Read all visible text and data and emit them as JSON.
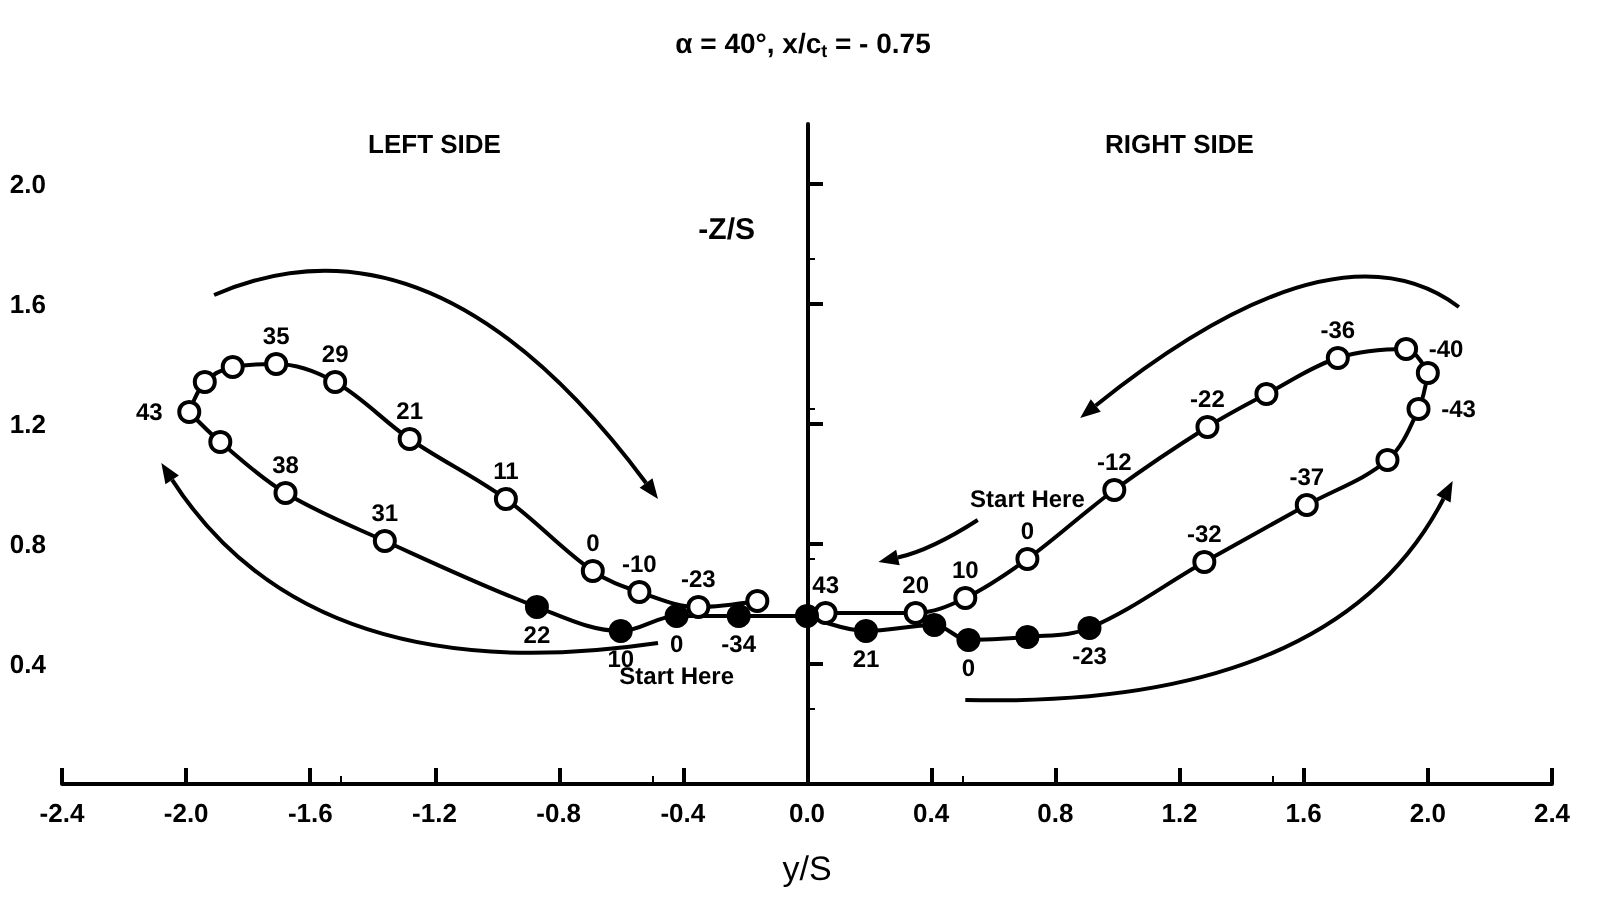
{
  "chart_data": {
    "type": "scatter",
    "title": "α = 40°, x/c$_{t}$ = - 0.75",
    "xlabel": "y/S",
    "ylabel": "-Z/S",
    "xlim": [
      -2.4,
      2.4
    ],
    "ylim": [
      0,
      2.2
    ],
    "xticks": [
      {
        "value": -2.4,
        "label": "-2.4"
      },
      {
        "value": -2.0,
        "label": "-2.0"
      },
      {
        "value": -1.6,
        "label": "-1.6"
      },
      {
        "value": -1.2,
        "label": "-1.2"
      },
      {
        "value": -0.8,
        "label": "-0.8"
      },
      {
        "value": -0.4,
        "label": "-0.4"
      },
      {
        "value": 0,
        "label": "0.0"
      },
      {
        "value": 0.4,
        "label": "0.4"
      },
      {
        "value": 0.8,
        "label": "0.8"
      },
      {
        "value": 1.2,
        "label": "1.2"
      },
      {
        "value": 1.6,
        "label": "1.6"
      },
      {
        "value": 2.0,
        "label": "2.0"
      },
      {
        "value": 2.4,
        "label": "2.4"
      }
    ],
    "yticks": [
      0.4,
      0.8,
      1.2,
      1.6,
      {
        "value": 2.0,
        "label": "2.0"
      }
    ],
    "legend": false,
    "annotations": [
      "LEFT SIDE",
      "RIGHT SIDE",
      {
        "text": "-23",
        "x": -0.35,
        "y": 0.59
      },
      {
        "text": "-10",
        "x": -0.54,
        "y": 0.64
      },
      {
        "text": "0",
        "x": -0.69,
        "y": 0.71
      },
      {
        "text": "11",
        "x": -0.97,
        "y": 0.95
      },
      {
        "text": "21",
        "x": -1.28,
        "y": 1.15
      },
      {
        "text": "29",
        "x": -1.52,
        "y": 1.34
      },
      {
        "text": "35",
        "x": -1.71,
        "y": 1.4
      },
      {
        "text": "43",
        "x": -1.99,
        "y": 1.24
      },
      {
        "text": "38",
        "x": -1.68,
        "y": 0.97
      },
      {
        "text": "31",
        "x": -1.36,
        "y": 0.81
      },
      {
        "text": "22",
        "x": -0.87,
        "y": 0.59
      },
      {
        "text": "10",
        "x": -0.6,
        "y": 0.51
      },
      {
        "text": "0",
        "x": -0.42,
        "y": 0.56
      },
      {
        "text": "-34",
        "x": -0.22,
        "y": 0.56
      },
      {
        "text": "43",
        "x": 0.06,
        "y": 0.57
      },
      {
        "text": "20",
        "x": 0.35,
        "y": 0.57
      },
      {
        "text": "10",
        "x": 0.51,
        "y": 0.62
      },
      {
        "text": "0",
        "x": 0.71,
        "y": 0.75
      },
      {
        "text": "-12",
        "x": 0.99,
        "y": 0.98
      },
      {
        "text": "-22",
        "x": 1.29,
        "y": 1.19
      },
      {
        "text": "-36",
        "x": 1.71,
        "y": 1.42
      },
      {
        "text": "-40",
        "x": 1.93,
        "y": 1.45
      },
      {
        "text": "-43",
        "x": 1.97,
        "y": 1.25
      },
      {
        "text": "-37",
        "x": 1.61,
        "y": 0.93
      },
      {
        "text": "-32",
        "x": 1.28,
        "y": 0.74
      },
      {
        "text": "21",
        "x": 0.19,
        "y": 0.51
      },
      {
        "text": "0",
        "x": 0.52,
        "y": 0.48
      },
      {
        "text": "-23",
        "x": 0.91,
        "y": 0.52
      },
      {
        "text": "Start Here",
        "x": -0.42,
        "y": 0.56
      },
      {
        "text": "Start Here",
        "x": 0.71,
        "y": 0.75
      }
    ],
    "series": [
      {
        "type": "line",
        "marker": "none",
        "color": "#000000",
        "x": [
          -0.16,
          -0.35,
          -0.54,
          -0.69,
          -0.97,
          -1.28,
          -1.52,
          -1.71,
          -1.85,
          -1.94,
          -1.99
        ],
        "values": [
          0.61,
          0.59,
          0.64,
          0.71,
          0.95,
          1.15,
          1.34,
          1.4,
          1.39,
          1.34,
          1.24
        ]
      },
      {
        "type": "line",
        "marker": "none",
        "color": "#000000",
        "x": [
          -1.99,
          -1.89,
          -1.68,
          -1.36,
          -0.87,
          -0.6,
          -0.42,
          -0.22,
          0
        ],
        "values": [
          1.24,
          1.14,
          0.97,
          0.81,
          0.59,
          0.51,
          0.56,
          0.56,
          0.56
        ]
      },
      {
        "type": "line",
        "marker": "none",
        "color": "#000000",
        "x": [
          0.06,
          0.35,
          0.51,
          0.71,
          0.99,
          1.29,
          1.48,
          1.71,
          1.93,
          2.0
        ],
        "values": [
          0.57,
          0.57,
          0.62,
          0.75,
          0.98,
          1.19,
          1.3,
          1.42,
          1.45,
          1.37
        ]
      },
      {
        "type": "line",
        "marker": "none",
        "color": "#000000",
        "x": [
          2.0,
          1.97,
          1.87,
          1.61,
          1.28,
          0.91,
          0.71,
          0.52,
          0.41,
          0.19,
          0
        ],
        "values": [
          1.37,
          1.25,
          1.08,
          0.93,
          0.74,
          0.52,
          0.49,
          0.48,
          0.53,
          0.51,
          0.56
        ]
      },
      {
        "marker": "circle",
        "color": "#ffffff",
        "x": [
          -0.16,
          -0.35,
          -0.54,
          -0.69,
          -0.97,
          -1.28,
          -1.52,
          -1.71,
          -1.85,
          -1.94,
          -1.99,
          -1.89,
          -1.68,
          -1.36
        ],
        "values": [
          0.61,
          0.59,
          0.64,
          0.71,
          0.95,
          1.15,
          1.34,
          1.4,
          1.39,
          1.34,
          1.24,
          1.14,
          0.97,
          0.81
        ]
      },
      {
        "marker": "circle",
        "color": "#000000",
        "x": [
          -0.87,
          -0.6,
          -0.42,
          -0.22
        ],
        "values": [
          0.59,
          0.51,
          0.56,
          0.56
        ]
      },
      {
        "marker": "circle",
        "color": "#ffffff",
        "x": [
          0.06,
          0.35,
          0.51,
          0.71,
          0.99,
          1.29,
          1.48,
          1.71,
          1.93,
          2.0,
          1.97,
          1.87,
          1.61,
          1.28
        ],
        "values": [
          0.57,
          0.57,
          0.62,
          0.75,
          0.98,
          1.19,
          1.3,
          1.42,
          1.45,
          1.37,
          1.25,
          1.08,
          0.93,
          0.74
        ]
      },
      {
        "marker": "circle",
        "color": "#000000",
        "x": [
          0,
          0.19,
          0.41,
          0.52,
          0.71,
          0.91
        ],
        "values": [
          0.56,
          0.51,
          0.53,
          0.48,
          0.49,
          0.52
        ]
      }
    ]
  }
}
